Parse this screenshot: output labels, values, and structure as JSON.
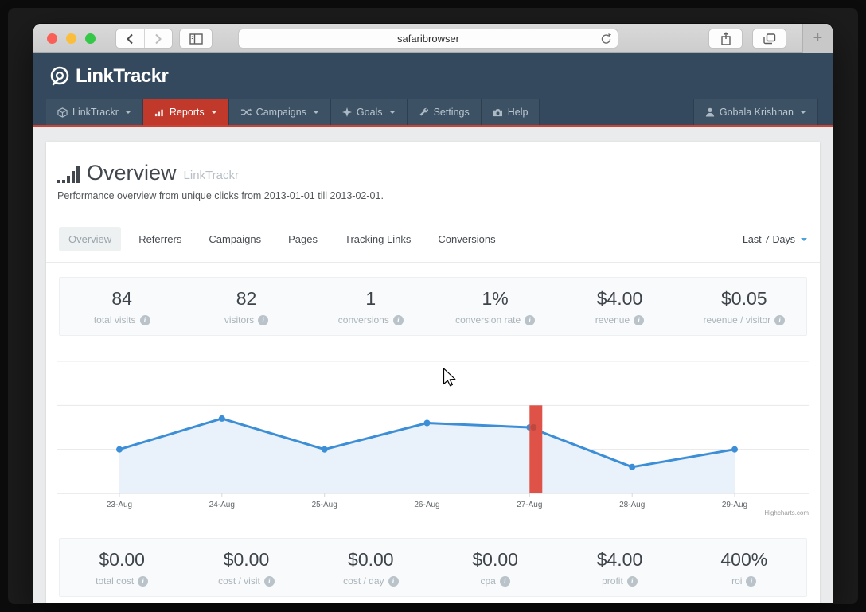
{
  "browser": {
    "url_text": "safaribrowser",
    "new_tab_label": "+"
  },
  "site_header": {
    "brand": "LinkTrackr",
    "nav": [
      {
        "label": "LinkTrackr",
        "icon": "cube-icon",
        "active": false
      },
      {
        "label": "Reports",
        "icon": "bar-chart-icon",
        "active": true
      },
      {
        "label": "Campaigns",
        "icon": "shuffle-icon",
        "active": false
      },
      {
        "label": "Goals",
        "icon": "goals-star-icon",
        "active": false
      },
      {
        "label": "Settings",
        "icon": "wrench-icon",
        "active": false
      },
      {
        "label": "Help",
        "icon": "camera-icon",
        "active": false
      }
    ],
    "user": {
      "label": "Gobala Krishnan",
      "icon": "user-icon"
    }
  },
  "page": {
    "title": "Overview",
    "title_suffix": "LinkTrackr",
    "subtitle": "Performance overview from unique clicks from 2013-01-01 till 2013-02-01.",
    "tabs": [
      {
        "label": "Overview",
        "active": true
      },
      {
        "label": "Referrers",
        "active": false
      },
      {
        "label": "Campaigns",
        "active": false
      },
      {
        "label": "Pages",
        "active": false
      },
      {
        "label": "Tracking Links",
        "active": false
      },
      {
        "label": "Conversions",
        "active": false
      }
    ],
    "date_range": "Last 7 Days",
    "stats_top": [
      {
        "value": "84",
        "label": "total visits"
      },
      {
        "value": "82",
        "label": "visitors"
      },
      {
        "value": "1",
        "label": "conversions"
      },
      {
        "value": "1%",
        "label": "conversion rate"
      },
      {
        "value": "$4.00",
        "label": "revenue"
      },
      {
        "value": "$0.05",
        "label": "revenue / visitor"
      }
    ],
    "stats_bottom": [
      {
        "value": "$0.00",
        "label": "total cost"
      },
      {
        "value": "$0.00",
        "label": "cost / visit"
      },
      {
        "value": "$0.00",
        "label": "cost / day"
      },
      {
        "value": "$0.00",
        "label": "cpa"
      },
      {
        "value": "$4.00",
        "label": "profit"
      },
      {
        "value": "400%",
        "label": "roi"
      }
    ],
    "credit": "Highcharts.com"
  },
  "chart_data": {
    "type": "area",
    "x": [
      "23-Aug",
      "24-Aug",
      "25-Aug",
      "26-Aug",
      "27-Aug",
      "28-Aug",
      "29-Aug"
    ],
    "series": [
      {
        "name": "unique visits",
        "type": "line-area",
        "values": [
          10,
          17,
          10,
          16,
          15,
          6,
          10
        ],
        "color": "#3c8ed6",
        "fill": "#e9f2fa"
      },
      {
        "name": "highlight-column",
        "type": "bar",
        "x": "27-Aug",
        "value": 20,
        "color": "#df5248"
      }
    ],
    "ylim": [
      0,
      30
    ],
    "gridlines": [
      0,
      10,
      20,
      30
    ],
    "grid": "on",
    "legend": "none",
    "title": "",
    "xlabel": "",
    "ylabel": ""
  },
  "colors": {
    "navbar": "#34495e",
    "nav_active": "#c0392b",
    "nav_underline": "#cb4335",
    "line_blue": "#3c8ed6",
    "bar_red": "#df5248",
    "page_bg": "#e9ebec"
  }
}
